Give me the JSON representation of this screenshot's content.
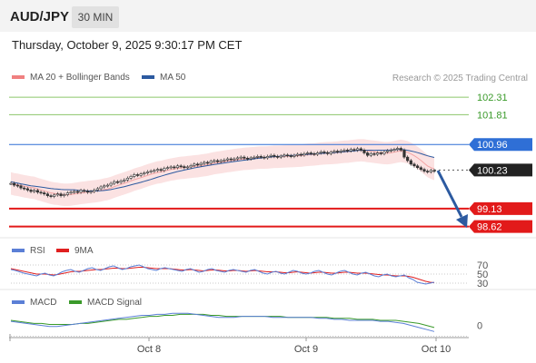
{
  "header": {
    "symbol": "AUD/JPY",
    "timeframe": "30 MIN"
  },
  "datetime": "Thursday, October 9, 2025 9:30:17 PM CET",
  "legend": {
    "ma20": {
      "label": "MA 20 + Bollinger Bands",
      "color": "#f08080"
    },
    "ma50": {
      "label": "MA 50",
      "color": "#2c5aa0"
    },
    "rsi": {
      "label": "RSI",
      "color": "#5b7fd6"
    },
    "rsi_ma": {
      "label": "9MA",
      "color": "#e02020"
    },
    "macd": {
      "label": "MACD",
      "color": "#5b7fd6"
    },
    "macd_signal": {
      "label": "MACD Signal",
      "color": "#3a9a2a"
    }
  },
  "credit": "Research © 2025 Trading Central",
  "colors": {
    "resistance": "#8cc66a",
    "support": "#e21a1a",
    "pivot": "#2f6fd6",
    "current": "#222222",
    "arrow": "#2c5aa0"
  },
  "chart_data": [
    {
      "type": "line",
      "name": "price",
      "ylim": [
        98.3,
        102.7
      ],
      "levels": [
        {
          "label": "102.31",
          "value": 102.31,
          "kind": "resistance"
        },
        {
          "label": "101.81",
          "value": 101.81,
          "kind": "resistance"
        },
        {
          "label": "100.96",
          "value": 100.96,
          "kind": "pivot"
        },
        {
          "label": "100.23",
          "value": 100.23,
          "kind": "current"
        },
        {
          "label": "99.13",
          "value": 99.13,
          "kind": "support"
        },
        {
          "label": "98.62",
          "value": 98.62,
          "kind": "support"
        }
      ],
      "close": [
        99.85,
        99.8,
        99.78,
        99.72,
        99.7,
        99.66,
        99.62,
        99.65,
        99.6,
        99.58,
        99.55,
        99.5,
        99.48,
        99.52,
        99.55,
        99.5,
        99.53,
        99.58,
        99.6,
        99.62,
        99.6,
        99.65,
        99.63,
        99.6,
        99.62,
        99.66,
        99.7,
        99.75,
        99.78,
        99.8,
        99.85,
        99.9,
        99.88,
        99.92,
        99.95,
        100.0,
        100.05,
        100.1,
        100.08,
        100.12,
        100.15,
        100.18,
        100.2,
        100.22,
        100.25,
        100.22,
        100.28,
        100.3,
        100.32,
        100.3,
        100.35,
        100.33,
        100.3,
        100.32,
        100.36,
        100.4,
        100.38,
        100.42,
        100.45,
        100.43,
        100.48,
        100.5,
        100.47,
        100.5,
        100.52,
        100.55,
        100.53,
        100.55,
        100.58,
        100.6,
        100.57,
        100.55,
        100.58,
        100.6,
        100.62,
        100.6,
        100.58,
        100.62,
        100.65,
        100.62,
        100.6,
        100.63,
        100.66,
        100.64,
        100.62,
        100.65,
        100.68,
        100.66,
        100.7,
        100.72,
        100.7,
        100.68,
        100.72,
        100.75,
        100.73,
        100.7,
        100.74,
        100.77,
        100.75,
        100.78,
        100.8,
        100.78,
        100.82,
        100.8,
        100.84,
        100.8,
        100.72,
        100.65,
        100.7,
        100.68,
        100.72,
        100.7,
        100.75,
        100.78,
        100.8,
        100.82,
        100.85,
        100.8,
        100.6,
        100.5,
        100.4,
        100.35,
        100.3,
        100.25,
        100.2,
        100.18,
        100.22,
        100.2
      ],
      "bb_upper_offset": 0.32,
      "ma50_offset": -0.25
    },
    {
      "type": "line",
      "name": "RSI",
      "levels": [
        {
          "label": "70",
          "value": 70
        },
        {
          "label": "50",
          "value": 50
        },
        {
          "label": "30",
          "value": 30
        }
      ],
      "ylim": [
        20,
        80
      ],
      "rsi": [
        60,
        58,
        55,
        52,
        50,
        48,
        46,
        50,
        52,
        48,
        46,
        50,
        55,
        58,
        60,
        56,
        54,
        58,
        62,
        64,
        60,
        58,
        62,
        66,
        68,
        64,
        60,
        62,
        66,
        68,
        70,
        66,
        62,
        60,
        58,
        62,
        64,
        62,
        60,
        58,
        56,
        60,
        62,
        58,
        54,
        56,
        60,
        62,
        58,
        56,
        54,
        58,
        60,
        58,
        56,
        54,
        58,
        60,
        56,
        52,
        50,
        54,
        56,
        52,
        50,
        54,
        58,
        56,
        52,
        50,
        52,
        56,
        58,
        54,
        50,
        48,
        52,
        56,
        58,
        54,
        50,
        48,
        52,
        54,
        50,
        46,
        44,
        48,
        50,
        46,
        44,
        46,
        48,
        42,
        38,
        32,
        30,
        28,
        30,
        32
      ],
      "rsi_ma": [
        62,
        60,
        58,
        56,
        54,
        52,
        50,
        50,
        50,
        49,
        48,
        49,
        51,
        53,
        55,
        56,
        56,
        57,
        58,
        59,
        60,
        60,
        61,
        62,
        63,
        63,
        62,
        62,
        63,
        64,
        65,
        65,
        64,
        63,
        62,
        62,
        62,
        62,
        61,
        60,
        59,
        59,
        60,
        59,
        58,
        57,
        58,
        59,
        59,
        58,
        57,
        57,
        58,
        58,
        57,
        56,
        57,
        58,
        57,
        56,
        55,
        55,
        55,
        54,
        53,
        53,
        54,
        55,
        54,
        53,
        52,
        53,
        54,
        54,
        53,
        52,
        52,
        53,
        54,
        54,
        53,
        52,
        52,
        52,
        51,
        50,
        49,
        48,
        48,
        47,
        46,
        46,
        46,
        45,
        43,
        40,
        37,
        34,
        32,
        31
      ]
    },
    {
      "type": "line",
      "name": "MACD",
      "levels": [
        {
          "label": "0",
          "value": 0
        }
      ],
      "ylim": [
        -0.12,
        0.14
      ],
      "macd": [
        0.04,
        0.03,
        0.02,
        0.01,
        0.0,
        -0.01,
        -0.01,
        0.0,
        0.01,
        0.02,
        0.03,
        0.04,
        0.05,
        0.06,
        0.07,
        0.08,
        0.09,
        0.1,
        0.1,
        0.11,
        0.11,
        0.12,
        0.12,
        0.12,
        0.11,
        0.1,
        0.09,
        0.08,
        0.08,
        0.08,
        0.09,
        0.09,
        0.09,
        0.09,
        0.08,
        0.08,
        0.08,
        0.08,
        0.08,
        0.08,
        0.07,
        0.07,
        0.06,
        0.06,
        0.05,
        0.05,
        0.05,
        0.05,
        0.04,
        0.04,
        0.03,
        0.02,
        0.0,
        -0.02,
        -0.04,
        -0.06
      ],
      "signal": [
        0.05,
        0.04,
        0.03,
        0.02,
        0.02,
        0.01,
        0.01,
        0.01,
        0.01,
        0.02,
        0.02,
        0.03,
        0.04,
        0.05,
        0.06,
        0.06,
        0.07,
        0.08,
        0.09,
        0.09,
        0.1,
        0.1,
        0.11,
        0.11,
        0.11,
        0.11,
        0.1,
        0.1,
        0.09,
        0.09,
        0.09,
        0.09,
        0.09,
        0.09,
        0.09,
        0.09,
        0.08,
        0.08,
        0.08,
        0.08,
        0.08,
        0.08,
        0.07,
        0.07,
        0.07,
        0.06,
        0.06,
        0.06,
        0.05,
        0.05,
        0.05,
        0.04,
        0.03,
        0.02,
        0.0,
        -0.02
      ]
    }
  ],
  "xaxis": {
    "ticks": [
      "Oct 8",
      "Oct 9",
      "Oct 10"
    ]
  }
}
